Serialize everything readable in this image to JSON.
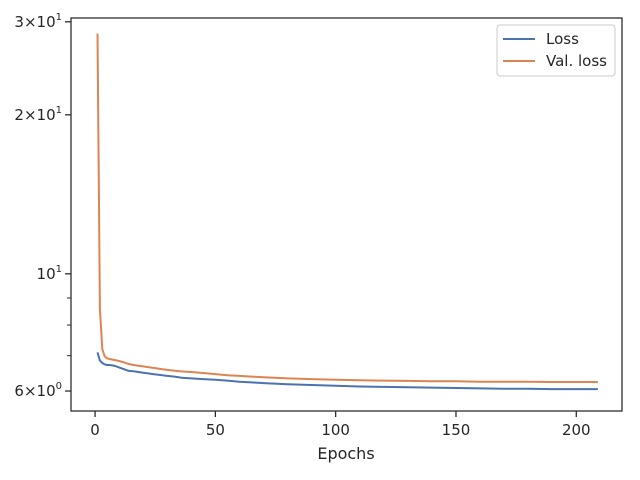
{
  "chart_data": {
    "type": "line",
    "title": "",
    "xlabel": "Epochs",
    "ylabel": "",
    "yscale": "log",
    "xlim": [
      -10,
      219
    ],
    "ylim": [
      5.5,
      30.5
    ],
    "grid": false,
    "legend_placement": "top-right",
    "x_ticks": [
      {
        "value": 0,
        "label": "0"
      },
      {
        "value": 50,
        "label": "50"
      },
      {
        "value": 100,
        "label": "100"
      },
      {
        "value": 150,
        "label": "150"
      },
      {
        "value": 200,
        "label": "200"
      }
    ],
    "y_major_ticks": [
      {
        "value": 6,
        "base": "6",
        "exp": "0",
        "prefix": "×10"
      },
      {
        "value": 10,
        "base": "",
        "exp": "1",
        "prefix": "10"
      },
      {
        "value": 20,
        "base": "2",
        "exp": "1",
        "prefix": "×10"
      },
      {
        "value": 30,
        "base": "3",
        "exp": "1",
        "prefix": "×10"
      }
    ],
    "y_minor_ticks": [
      7,
      8,
      9
    ],
    "series": [
      {
        "name": "Loss",
        "color": "#4c72b0",
        "points": [
          [
            1,
            7.1
          ],
          [
            2,
            6.85
          ],
          [
            3,
            6.78
          ],
          [
            4,
            6.74
          ],
          [
            5,
            6.72
          ],
          [
            6,
            6.72
          ],
          [
            8,
            6.7
          ],
          [
            10,
            6.65
          ],
          [
            12,
            6.6
          ],
          [
            14,
            6.55
          ],
          [
            16,
            6.54
          ],
          [
            18,
            6.52
          ],
          [
            20,
            6.5
          ],
          [
            22,
            6.48
          ],
          [
            25,
            6.45
          ],
          [
            28,
            6.43
          ],
          [
            30,
            6.41
          ],
          [
            33,
            6.39
          ],
          [
            36,
            6.36
          ],
          [
            40,
            6.34
          ],
          [
            45,
            6.32
          ],
          [
            50,
            6.3
          ],
          [
            55,
            6.28
          ],
          [
            60,
            6.25
          ],
          [
            65,
            6.23
          ],
          [
            70,
            6.21
          ],
          [
            80,
            6.18
          ],
          [
            90,
            6.16
          ],
          [
            100,
            6.14
          ],
          [
            110,
            6.12
          ],
          [
            120,
            6.11
          ],
          [
            130,
            6.1
          ],
          [
            140,
            6.09
          ],
          [
            150,
            6.08
          ],
          [
            160,
            6.07
          ],
          [
            170,
            6.06
          ],
          [
            180,
            6.06
          ],
          [
            190,
            6.05
          ],
          [
            200,
            6.05
          ],
          [
            209,
            6.05
          ]
        ]
      },
      {
        "name": "Val. loss",
        "color": "#dd8452",
        "points": [
          [
            1,
            28.5
          ],
          [
            2,
            8.6
          ],
          [
            3,
            7.2
          ],
          [
            4,
            6.98
          ],
          [
            5,
            6.92
          ],
          [
            6,
            6.9
          ],
          [
            8,
            6.87
          ],
          [
            10,
            6.84
          ],
          [
            12,
            6.8
          ],
          [
            14,
            6.75
          ],
          [
            16,
            6.72
          ],
          [
            18,
            6.7
          ],
          [
            20,
            6.68
          ],
          [
            22,
            6.66
          ],
          [
            25,
            6.63
          ],
          [
            28,
            6.6
          ],
          [
            30,
            6.58
          ],
          [
            35,
            6.54
          ],
          [
            40,
            6.52
          ],
          [
            45,
            6.49
          ],
          [
            50,
            6.46
          ],
          [
            55,
            6.43
          ],
          [
            60,
            6.41
          ],
          [
            65,
            6.39
          ],
          [
            70,
            6.37
          ],
          [
            80,
            6.34
          ],
          [
            90,
            6.32
          ],
          [
            100,
            6.3
          ],
          [
            110,
            6.29
          ],
          [
            120,
            6.28
          ],
          [
            130,
            6.27
          ],
          [
            140,
            6.26
          ],
          [
            150,
            6.26
          ],
          [
            160,
            6.25
          ],
          [
            170,
            6.25
          ],
          [
            180,
            6.25
          ],
          [
            190,
            6.24
          ],
          [
            200,
            6.24
          ],
          [
            209,
            6.24
          ]
        ]
      }
    ]
  }
}
